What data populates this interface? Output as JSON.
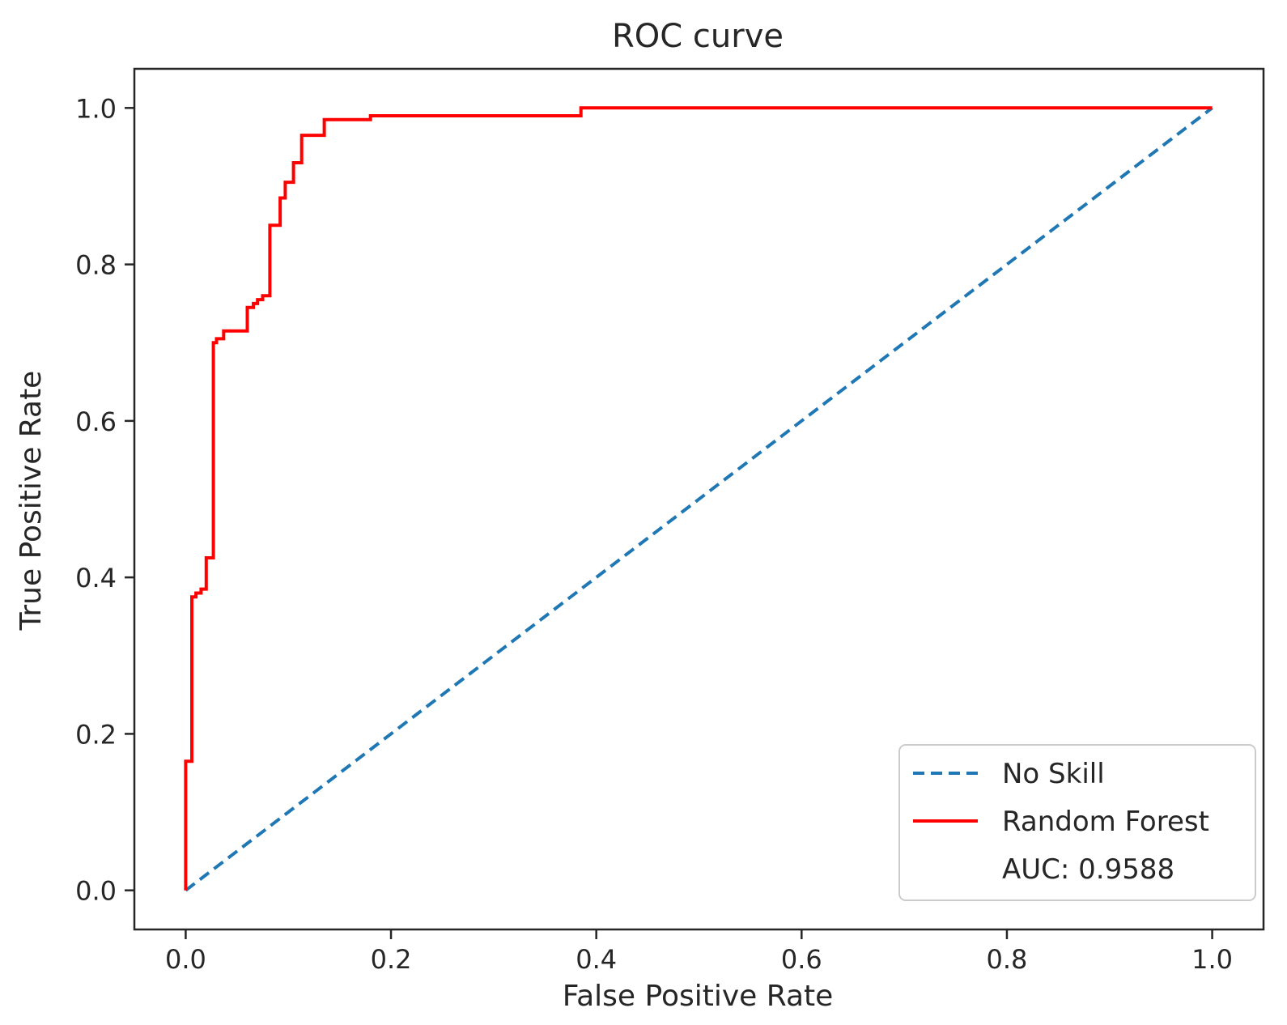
{
  "chart_data": {
    "type": "line",
    "title": "ROC curve",
    "xlabel": "False Positive Rate",
    "ylabel": "True Positive Rate",
    "xlim": [
      -0.05,
      1.05
    ],
    "ylim": [
      -0.05,
      1.05
    ],
    "xticks": [
      0.0,
      0.2,
      0.4,
      0.6,
      0.8,
      1.0
    ],
    "yticks": [
      0.0,
      0.2,
      0.4,
      0.6,
      0.8,
      1.0
    ],
    "xtick_labels": [
      "0.0",
      "0.2",
      "0.4",
      "0.6",
      "0.8",
      "1.0"
    ],
    "ytick_labels": [
      "0.0",
      "0.2",
      "0.4",
      "0.6",
      "0.8",
      "1.0"
    ],
    "grid": false,
    "legend_position": "lower-right",
    "annotation": "AUC: 0.9588",
    "series": [
      {
        "name": "No Skill",
        "color": "#1f77b4",
        "style": "dashed",
        "x": [
          0.0,
          1.0
        ],
        "y": [
          0.0,
          1.0
        ]
      },
      {
        "name": "Random Forest",
        "color": "#ff0000",
        "style": "solid",
        "x": [
          0.0,
          0.0,
          0.006,
          0.006,
          0.01,
          0.01,
          0.015,
          0.015,
          0.02,
          0.02,
          0.027,
          0.027,
          0.03,
          0.03,
          0.037,
          0.037,
          0.06,
          0.06,
          0.066,
          0.066,
          0.07,
          0.07,
          0.075,
          0.075,
          0.082,
          0.082,
          0.092,
          0.092,
          0.097,
          0.097,
          0.105,
          0.105,
          0.113,
          0.113,
          0.135,
          0.135,
          0.18,
          0.18,
          0.385,
          0.385,
          1.0
        ],
        "y": [
          0.0,
          0.165,
          0.165,
          0.375,
          0.375,
          0.38,
          0.38,
          0.385,
          0.385,
          0.425,
          0.425,
          0.7,
          0.7,
          0.705,
          0.705,
          0.715,
          0.715,
          0.745,
          0.745,
          0.75,
          0.75,
          0.755,
          0.755,
          0.76,
          0.76,
          0.85,
          0.85,
          0.885,
          0.885,
          0.905,
          0.905,
          0.93,
          0.93,
          0.965,
          0.965,
          0.985,
          0.985,
          0.99,
          0.99,
          1.0,
          1.0
        ]
      }
    ]
  }
}
